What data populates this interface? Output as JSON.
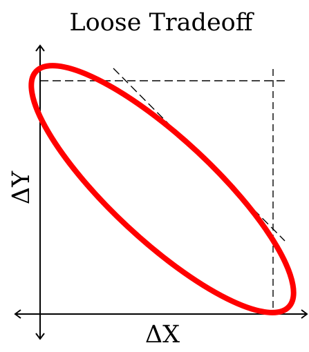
{
  "title": "Loose Tradeoff",
  "x_axis_label": "ΔX",
  "y_axis_label": "ΔY",
  "colors": {
    "ellipse": "#ff0000",
    "axes": "#000000",
    "guides": "#000000",
    "background": "#ffffff"
  }
}
